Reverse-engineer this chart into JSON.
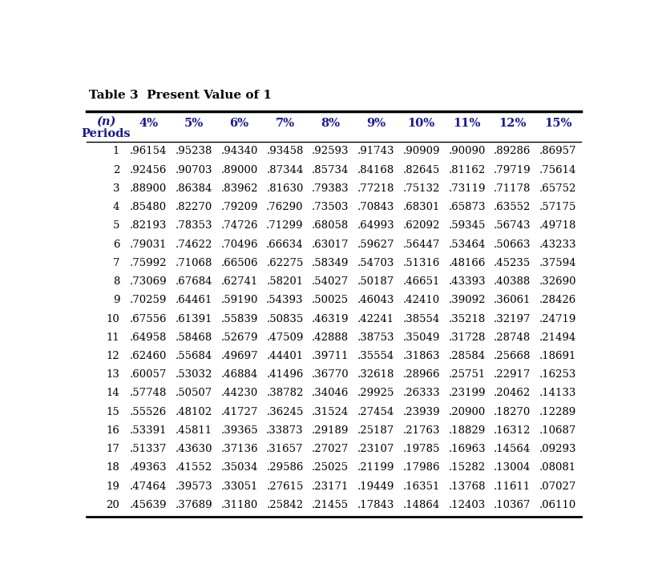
{
  "title": "Table 3  Present Value of 1",
  "header_n": "(n)",
  "header_periods": "Periods",
  "columns": [
    "4%",
    "5%",
    "6%",
    "7%",
    "8%",
    "9%",
    "10%",
    "11%",
    "12%",
    "15%"
  ],
  "rows": [
    [
      1,
      ".96154",
      ".95238",
      ".94340",
      ".93458",
      ".92593",
      ".91743",
      ".90909",
      ".90090",
      ".89286",
      ".86957"
    ],
    [
      2,
      ".92456",
      ".90703",
      ".89000",
      ".87344",
      ".85734",
      ".84168",
      ".82645",
      ".81162",
      ".79719",
      ".75614"
    ],
    [
      3,
      ".88900",
      ".86384",
      ".83962",
      ".81630",
      ".79383",
      ".77218",
      ".75132",
      ".73119",
      ".71178",
      ".65752"
    ],
    [
      4,
      ".85480",
      ".82270",
      ".79209",
      ".76290",
      ".73503",
      ".70843",
      ".68301",
      ".65873",
      ".63552",
      ".57175"
    ],
    [
      5,
      ".82193",
      ".78353",
      ".74726",
      ".71299",
      ".68058",
      ".64993",
      ".62092",
      ".59345",
      ".56743",
      ".49718"
    ],
    [
      6,
      ".79031",
      ".74622",
      ".70496",
      ".66634",
      ".63017",
      ".59627",
      ".56447",
      ".53464",
      ".50663",
      ".43233"
    ],
    [
      7,
      ".75992",
      ".71068",
      ".66506",
      ".62275",
      ".58349",
      ".54703",
      ".51316",
      ".48166",
      ".45235",
      ".37594"
    ],
    [
      8,
      ".73069",
      ".67684",
      ".62741",
      ".58201",
      ".54027",
      ".50187",
      ".46651",
      ".43393",
      ".40388",
      ".32690"
    ],
    [
      9,
      ".70259",
      ".64461",
      ".59190",
      ".54393",
      ".50025",
      ".46043",
      ".42410",
      ".39092",
      ".36061",
      ".28426"
    ],
    [
      10,
      ".67556",
      ".61391",
      ".55839",
      ".50835",
      ".46319",
      ".42241",
      ".38554",
      ".35218",
      ".32197",
      ".24719"
    ],
    [
      11,
      ".64958",
      ".58468",
      ".52679",
      ".47509",
      ".42888",
      ".38753",
      ".35049",
      ".31728",
      ".28748",
      ".21494"
    ],
    [
      12,
      ".62460",
      ".55684",
      ".49697",
      ".44401",
      ".39711",
      ".35554",
      ".31863",
      ".28584",
      ".25668",
      ".18691"
    ],
    [
      13,
      ".60057",
      ".53032",
      ".46884",
      ".41496",
      ".36770",
      ".32618",
      ".28966",
      ".25751",
      ".22917",
      ".16253"
    ],
    [
      14,
      ".57748",
      ".50507",
      ".44230",
      ".38782",
      ".34046",
      ".29925",
      ".26333",
      ".23199",
      ".20462",
      ".14133"
    ],
    [
      15,
      ".55526",
      ".48102",
      ".41727",
      ".36245",
      ".31524",
      ".27454",
      ".23939",
      ".20900",
      ".18270",
      ".12289"
    ],
    [
      16,
      ".53391",
      ".45811",
      ".39365",
      ".33873",
      ".29189",
      ".25187",
      ".21763",
      ".18829",
      ".16312",
      ".10687"
    ],
    [
      17,
      ".51337",
      ".43630",
      ".37136",
      ".31657",
      ".27027",
      ".23107",
      ".19785",
      ".16963",
      ".14564",
      ".09293"
    ],
    [
      18,
      ".49363",
      ".41552",
      ".35034",
      ".29586",
      ".25025",
      ".21199",
      ".17986",
      ".15282",
      ".13004",
      ".08081"
    ],
    [
      19,
      ".47464",
      ".39573",
      ".33051",
      ".27615",
      ".23171",
      ".19449",
      ".16351",
      ".13768",
      ".11611",
      ".07027"
    ],
    [
      20,
      ".45639",
      ".37689",
      ".31180",
      ".25842",
      ".21455",
      ".17843",
      ".14864",
      ".12403",
      ".10367",
      ".06110"
    ]
  ],
  "bg_color": "#ffffff",
  "text_color": "#000000",
  "header_color": "#1a1a8c",
  "title_color": "#000000",
  "font_size": 9.5,
  "header_font_size": 10.5,
  "title_font_size": 11
}
